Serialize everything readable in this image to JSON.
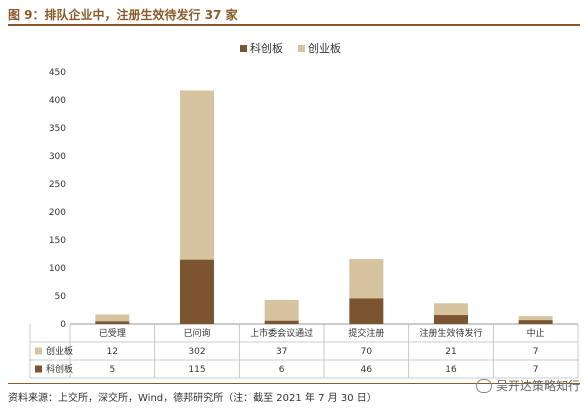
{
  "title": "图 9：排队企业中，注册生效待发行 37 家",
  "source": "资料来源：上交所，深交所，Wind，德邦研究所（注：截至 2021 年 7 月 30 日）",
  "watermark": "吴开达策略知行",
  "colors": {
    "kechuang": "#7b5530",
    "chuangye": "#d6c3a0"
  },
  "chart_data": {
    "type": "bar",
    "stacked": true,
    "categories": [
      "已受理",
      "已问询",
      "上市委会议通过",
      "提交注册",
      "注册生效待发行",
      "中止"
    ],
    "series": [
      {
        "name": "科创板",
        "values": [
          5,
          115,
          6,
          46,
          16,
          7
        ]
      },
      {
        "name": "创业板",
        "values": [
          12,
          302,
          37,
          70,
          21,
          7
        ]
      }
    ],
    "ylim": [
      0,
      450
    ],
    "yticks": [
      0,
      50,
      100,
      150,
      200,
      250,
      300,
      350,
      400,
      450
    ],
    "legend_position": "top-center",
    "data_table": true
  }
}
